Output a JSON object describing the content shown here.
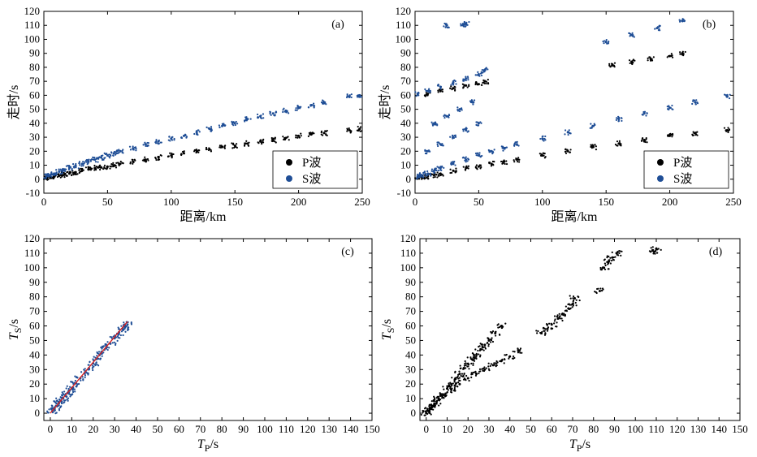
{
  "chart_data": [
    {
      "panel": "(a)",
      "type": "scatter",
      "xlabel": "距离/km",
      "ylabel": "走时/s",
      "xlim": [
        0,
        250
      ],
      "ylim": [
        -10,
        120
      ],
      "xticks": [
        0,
        50,
        100,
        150,
        200,
        250
      ],
      "yticks": [
        -10,
        0,
        10,
        20,
        30,
        40,
        50,
        60,
        70,
        80,
        90,
        100,
        110,
        120
      ],
      "grid": false,
      "legend": "bottom-right",
      "series": [
        {
          "name": "P波",
          "color": "#000000",
          "x": [
            2,
            5,
            8,
            12,
            16,
            20,
            25,
            30,
            35,
            40,
            45,
            50,
            55,
            60,
            70,
            80,
            90,
            100,
            110,
            120,
            130,
            140,
            150,
            160,
            170,
            180,
            190,
            200,
            210,
            220,
            240,
            248
          ],
          "y": [
            1,
            1.5,
            2,
            2.5,
            3.2,
            4,
            5,
            6,
            7,
            8,
            8.5,
            9,
            10,
            11,
            12.5,
            14,
            15.5,
            17,
            18.5,
            20,
            21.5,
            23,
            24,
            25.5,
            27,
            28,
            29.5,
            31,
            32,
            33,
            35,
            36
          ]
        },
        {
          "name": "S波",
          "color": "#1f4e96",
          "x": [
            2,
            5,
            8,
            12,
            16,
            20,
            25,
            30,
            35,
            40,
            45,
            50,
            55,
            60,
            70,
            80,
            90,
            100,
            110,
            120,
            130,
            140,
            150,
            160,
            170,
            180,
            190,
            200,
            210,
            220,
            240,
            248
          ],
          "y": [
            2,
            3,
            4,
            5.5,
            7,
            8,
            9.5,
            11,
            12.5,
            14,
            15.5,
            17,
            18.5,
            20,
            22,
            25,
            27,
            29,
            31,
            33.5,
            36,
            38,
            40,
            43,
            45,
            47,
            49,
            51,
            53,
            55,
            59,
            60
          ]
        }
      ]
    },
    {
      "panel": "(b)",
      "type": "scatter",
      "xlabel": "距离/km",
      "ylabel": "走时/s",
      "xlim": [
        0,
        250
      ],
      "ylim": [
        -10,
        120
      ],
      "xticks": [
        0,
        50,
        100,
        150,
        200,
        250
      ],
      "yticks": [
        -10,
        0,
        10,
        20,
        30,
        40,
        50,
        60,
        70,
        80,
        90,
        100,
        110,
        120
      ],
      "grid": false,
      "legend": "bottom-right",
      "series": [
        {
          "name": "P波",
          "color": "#000000",
          "x": [
            2,
            5,
            10,
            15,
            20,
            30,
            40,
            50,
            60,
            70,
            80,
            100,
            120,
            140,
            160,
            180,
            200,
            220,
            245,
            10,
            20,
            30,
            40,
            50,
            55,
            155,
            170,
            185,
            200,
            210
          ],
          "y": [
            1,
            1.5,
            2,
            3,
            4,
            6,
            8,
            9,
            11,
            12.5,
            14,
            17,
            20,
            23,
            25.5,
            28,
            31,
            33,
            35,
            61,
            63,
            65,
            67,
            68,
            70,
            82,
            84,
            86,
            88,
            90
          ]
        },
        {
          "name": "S波",
          "color": "#1f4e96",
          "x": [
            2,
            5,
            10,
            15,
            20,
            30,
            40,
            50,
            60,
            70,
            80,
            100,
            120,
            140,
            160,
            180,
            200,
            220,
            245,
            2,
            10,
            20,
            30,
            40,
            50,
            55,
            10,
            20,
            30,
            40,
            50,
            15,
            25,
            35,
            45,
            150,
            170,
            190,
            210,
            25,
            38,
            40
          ],
          "y": [
            2,
            3,
            4,
            6,
            8,
            11,
            14,
            17,
            20,
            22,
            25,
            29,
            33.5,
            38,
            43,
            47,
            51,
            55,
            59,
            61,
            63,
            66,
            69,
            72,
            75,
            78,
            20,
            25,
            30,
            35,
            40,
            40,
            45,
            50,
            55,
            98,
            103,
            108,
            113,
            110,
            110,
            111
          ]
        }
      ]
    },
    {
      "panel": "(c)",
      "type": "scatter",
      "xlabel": "TP/s",
      "ylabel": "TS/s",
      "xlim": [
        -3,
        150
      ],
      "ylim": [
        -5,
        120
      ],
      "xticks": [
        0,
        10,
        20,
        30,
        40,
        50,
        60,
        70,
        80,
        90,
        100,
        110,
        120,
        130,
        140,
        150
      ],
      "yticks": [
        0,
        10,
        20,
        30,
        40,
        50,
        60,
        70,
        80,
        90,
        100,
        110,
        120
      ],
      "grid": false,
      "series": [
        {
          "name": "",
          "color": "#1f4e96",
          "x": [
            1,
            2,
            3,
            4,
            5,
            6,
            7,
            8,
            9,
            10,
            12,
            14,
            16,
            18,
            20,
            22,
            24,
            26,
            28,
            30,
            32,
            34,
            35,
            36
          ],
          "y": [
            1.5,
            3.3,
            5,
            6.8,
            8.5,
            10.2,
            12,
            13.8,
            15.5,
            17.2,
            20.5,
            24,
            27.5,
            31,
            34.2,
            37.5,
            41,
            44.5,
            47.8,
            51.5,
            54.5,
            57.5,
            59.5,
            61
          ]
        },
        {
          "name": "",
          "color": "#d62020",
          "type": "line",
          "x": [
            0,
            36
          ],
          "y": [
            0,
            63
          ]
        }
      ]
    },
    {
      "panel": "(d)",
      "type": "scatter",
      "xlabel": "TP/s",
      "ylabel": "TS/s",
      "xlim": [
        -3,
        150
      ],
      "ylim": [
        -5,
        120
      ],
      "xticks": [
        0,
        10,
        20,
        30,
        40,
        50,
        60,
        70,
        80,
        90,
        100,
        110,
        120,
        130,
        140,
        150
      ],
      "yticks": [
        0,
        10,
        20,
        30,
        40,
        50,
        60,
        70,
        80,
        90,
        100,
        110,
        120
      ],
      "grid": false,
      "series": [
        {
          "name": "",
          "color": "#000000",
          "x": [
            0,
            1,
            2,
            3,
            4,
            5,
            6,
            7,
            8,
            10,
            12,
            14,
            16,
            18,
            20,
            22,
            24,
            26,
            28,
            30,
            33,
            36,
            12,
            16,
            20,
            24,
            28,
            32,
            36,
            40,
            44,
            55,
            58,
            60,
            63,
            65,
            68,
            70,
            71,
            83,
            85,
            87,
            89,
            91,
            109,
            110
          ],
          "y": [
            0,
            1.5,
            3,
            5,
            6.5,
            8,
            10,
            12,
            13,
            17,
            20,
            24,
            27,
            31,
            34,
            37,
            40,
            44,
            47,
            50,
            55,
            60,
            16,
            20,
            24,
            27,
            30,
            33,
            36,
            39,
            43,
            55,
            58,
            61,
            65,
            68,
            72,
            75,
            79,
            84,
            100,
            104,
            107,
            110,
            111,
            113
          ]
        }
      ]
    }
  ]
}
